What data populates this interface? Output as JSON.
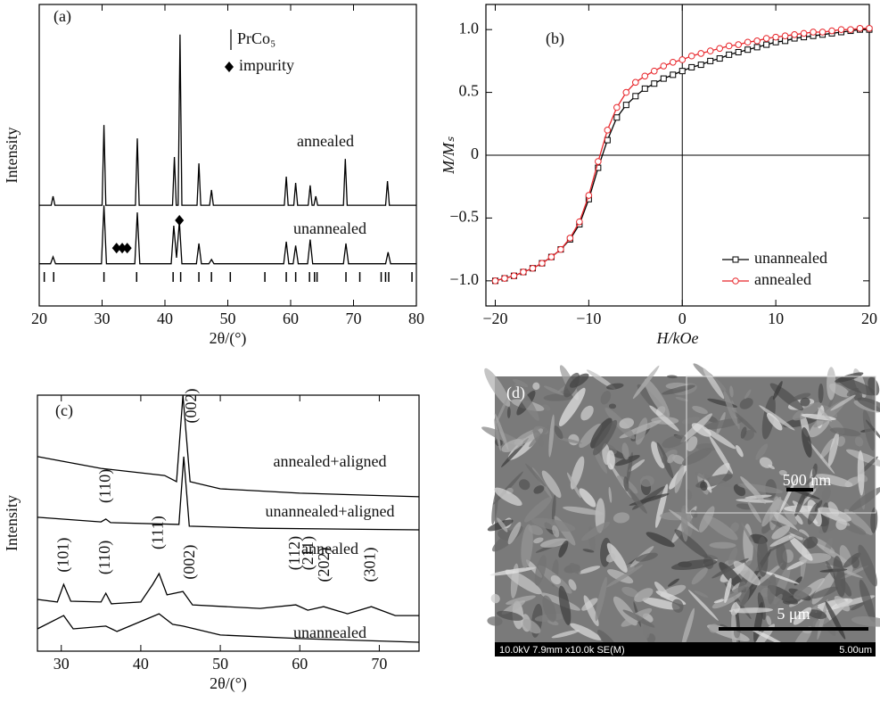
{
  "chart_data": [
    {
      "type": "line",
      "label": "(a)",
      "xlabel": "2θ/(°)",
      "ylabel": "Intensity",
      "xlim": [
        20,
        80
      ],
      "xticks": [
        20,
        30,
        40,
        50,
        60,
        70,
        80
      ],
      "ylim": [
        0,
        100
      ],
      "series": [
        {
          "name": "annealed",
          "color": "#000000",
          "x": [
            20,
            21.9,
            22.2,
            22.5,
            30.0,
            30.3,
            30.6,
            35.3,
            35.6,
            35.9,
            41.2,
            41.5,
            41.8,
            42.1,
            42.4,
            42.7,
            45.1,
            45.4,
            45.7,
            47.1,
            47.4,
            47.7,
            59.0,
            59.3,
            59.6,
            60.5,
            60.8,
            61.1,
            62.8,
            63.1,
            63.4,
            63.7,
            64.0,
            64.3,
            68.4,
            68.7,
            69.0,
            75.1,
            75.4,
            75.7,
            80
          ],
          "values": [
            33.4,
            33.4,
            36.4,
            33.4,
            33.4,
            60,
            33.4,
            33.4,
            55.6,
            33.4,
            33.4,
            49.4,
            33.4,
            33.4,
            90,
            33.4,
            33.4,
            47.3,
            33.4,
            33.4,
            38.5,
            33.4,
            33.4,
            42.9,
            33.4,
            33.4,
            40.8,
            33.4,
            33.4,
            40,
            33.4,
            33.4,
            36.4,
            33.4,
            33.4,
            48.8,
            33.4,
            33.4,
            41.4,
            33.4,
            33.4
          ]
        },
        {
          "name": "unannealed",
          "color": "#000000",
          "x": [
            20,
            21.8,
            22.2,
            22.6,
            29.9,
            30.3,
            30.7,
            35.2,
            35.6,
            36.0,
            41.0,
            41.4,
            41.85,
            42.3,
            42.7,
            45.0,
            45.4,
            45.8,
            47.0,
            47.4,
            47.8,
            58.9,
            59.3,
            59.7,
            60.4,
            60.8,
            61.2,
            62.7,
            63.1,
            63.5,
            68.4,
            68.8,
            69.2,
            75.1,
            75.5,
            75.9,
            80
          ],
          "values": [
            14,
            14,
            16.3,
            14,
            14,
            33.4,
            14,
            14,
            31,
            14,
            14,
            26.6,
            16,
            28,
            14,
            14,
            20.7,
            14,
            14,
            15.4,
            14,
            14,
            21.3,
            14,
            14,
            20,
            14,
            14,
            22,
            14,
            14,
            20.7,
            14,
            14,
            17.8,
            14,
            14
          ]
        }
      ],
      "reference": {
        "name": "PrCo₅",
        "x": [
          20.8,
          22.3,
          30.3,
          35.5,
          41.3,
          42.5,
          45.4,
          47.4,
          50.4,
          55.9,
          59.3,
          60.8,
          63.0,
          63.8,
          64.2,
          68.8,
          71.0,
          74.4,
          75.1,
          75.6,
          79.3
        ]
      },
      "impurity": {
        "name": "impurity",
        "x": [
          32.3,
          33.2,
          34.0,
          42.3
        ],
        "values": [
          19.2,
          19.2,
          19.2,
          28.4
        ]
      }
    },
    {
      "type": "line",
      "label": "(b)",
      "xlabel": "H/kOe",
      "ylabel": "M/Mₛ",
      "xlim": [
        -21,
        20
      ],
      "xticks": [
        {
          "value": -20,
          "label": "−20"
        },
        {
          "value": -10,
          "label": "−10"
        },
        0,
        10,
        20
      ],
      "ylim": [
        -1.2,
        1.2
      ],
      "yticks": [
        {
          "value": -1,
          "label": "−1.0"
        },
        {
          "value": -0.5,
          "label": "−0.5"
        },
        0,
        {
          "value": 0.5,
          "label": "0.5"
        },
        {
          "value": 1,
          "label": "1.0"
        }
      ],
      "zero_lines": true,
      "legend": "lower right",
      "x": [
        -20,
        -19,
        -18,
        -17,
        -16,
        -15,
        -14,
        -13,
        -12,
        -11,
        -10,
        -9,
        -8,
        -7,
        -6,
        -5,
        -4,
        -3,
        -2,
        -1,
        0,
        1,
        2,
        3,
        4,
        5,
        6,
        7,
        8,
        9,
        10,
        11,
        12,
        13,
        14,
        15,
        16,
        17,
        18,
        19,
        20
      ],
      "series": [
        {
          "name": "unannealed",
          "color": "#000000",
          "marker": "square",
          "values": [
            -1.0,
            -0.98,
            -0.96,
            -0.93,
            -0.9,
            -0.86,
            -0.81,
            -0.75,
            -0.67,
            -0.55,
            -0.35,
            -0.1,
            0.12,
            0.3,
            0.4,
            0.47,
            0.53,
            0.57,
            0.61,
            0.64,
            0.67,
            0.7,
            0.72,
            0.75,
            0.77,
            0.8,
            0.82,
            0.84,
            0.86,
            0.88,
            0.9,
            0.91,
            0.93,
            0.94,
            0.95,
            0.96,
            0.97,
            0.98,
            0.99,
            1.0,
            1.0
          ]
        },
        {
          "name": "annealed",
          "color": "#e8262b",
          "marker": "circle",
          "values": [
            -1.0,
            -0.98,
            -0.96,
            -0.93,
            -0.9,
            -0.86,
            -0.81,
            -0.75,
            -0.66,
            -0.53,
            -0.32,
            -0.05,
            0.2,
            0.38,
            0.5,
            0.58,
            0.63,
            0.67,
            0.71,
            0.74,
            0.76,
            0.79,
            0.81,
            0.83,
            0.85,
            0.87,
            0.88,
            0.9,
            0.91,
            0.93,
            0.94,
            0.95,
            0.96,
            0.97,
            0.98,
            0.98,
            0.99,
            1.0,
            1.0,
            1.01,
            1.01
          ]
        }
      ]
    },
    {
      "type": "line",
      "label": "(c)",
      "xlabel": "2θ/(°)",
      "ylabel": "Intensity",
      "xlim": [
        27,
        75
      ],
      "xticks": [
        30,
        40,
        50,
        60,
        70
      ],
      "ylim": [
        0,
        100
      ],
      "series": [
        {
          "name": "annealed+aligned",
          "color": "#000000",
          "x": [
            27,
            35,
            43,
            44.5,
            45.3,
            46.2,
            50,
            60,
            75
          ],
          "values": [
            76,
            71.4,
            68.6,
            66.2,
            100,
            66.2,
            63.4,
            61.7,
            60.3
          ]
        },
        {
          "name": "unannealed+aligned",
          "color": "#000000",
          "x": [
            27,
            35,
            35.6,
            36.2,
            44.8,
            45.4,
            46.1,
            55,
            75
          ],
          "values": [
            52.3,
            50.5,
            51.6,
            50.2,
            49.5,
            76,
            48.8,
            48,
            47.4
          ]
        },
        {
          "name": "annealed",
          "color": "#000000",
          "x": [
            27,
            29.5,
            30.3,
            31.2,
            35,
            35.6,
            36.3,
            40,
            41.5,
            42.3,
            43.3,
            45.3,
            46.5,
            55,
            59.5,
            61,
            63,
            66,
            69,
            72,
            75
          ],
          "values": [
            20.2,
            19.2,
            26.1,
            19.5,
            19.2,
            22.6,
            18.5,
            19.2,
            26.1,
            30.3,
            22,
            23.3,
            18.1,
            16.7,
            18.1,
            16,
            17.4,
            14.6,
            17.4,
            13.9,
            13.9
          ]
        },
        {
          "name": "unannealed",
          "color": "#000000",
          "x": [
            27,
            30.3,
            31.5,
            35.6,
            37,
            42.3,
            44,
            45.3,
            50,
            60,
            75
          ],
          "values": [
            8.7,
            13.9,
            8.7,
            9.8,
            7.7,
            14.6,
            10.5,
            9.8,
            6.3,
            4.9,
            3.5
          ]
        }
      ],
      "annotations": [
        {
          "text": "(002)",
          "x": 46.5,
          "y": 95.8
        },
        {
          "text": "(110)",
          "x": 35.7,
          "y": 64.5
        },
        {
          "text": "(101)",
          "x": 30.4,
          "y": 37.6
        },
        {
          "text": "(110)",
          "x": 35.6,
          "y": 36.6
        },
        {
          "text": "(111)",
          "x": 42.3,
          "y": 46.3
        },
        {
          "text": "(002)",
          "x": 46.3,
          "y": 34.8
        },
        {
          "text": "(112)",
          "x": 59.5,
          "y": 38.3
        },
        {
          "text": "(211)",
          "x": 61.2,
          "y": 38.3
        },
        {
          "text": "(202)",
          "x": 63.2,
          "y": 33.8
        },
        {
          "text": "(301)",
          "x": 69,
          "y": 33.8
        }
      ]
    }
  ],
  "image": {
    "label": "(d)",
    "inset_scale": "500 nm",
    "scale": "5 μm",
    "footer": "10.0kV 7.9mm x10.0k SE(M)",
    "footer_scale": "5.00um"
  }
}
